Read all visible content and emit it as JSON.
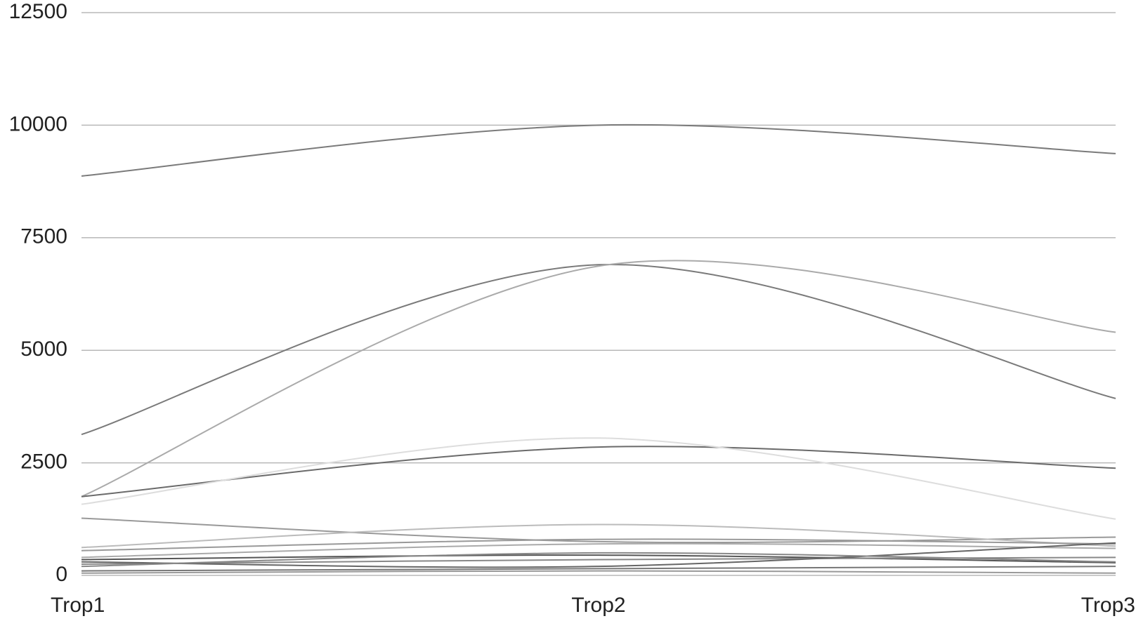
{
  "chart_data": {
    "type": "line",
    "categories": [
      "Trop1",
      "Trop2",
      "Trop3"
    ],
    "ylim": [
      0,
      12500
    ],
    "yticks": [
      0,
      2500,
      5000,
      7500,
      10000,
      12500
    ],
    "grid": true,
    "smooth": true,
    "series": [
      {
        "color": "#7a7a7a",
        "values": [
          8870,
          10000,
          9370
        ]
      },
      {
        "color": "#7a7a7a",
        "values": [
          3130,
          6900,
          3930
        ]
      },
      {
        "color": "#aaaaaa",
        "values": [
          1750,
          6870,
          5400
        ]
      },
      {
        "color": "#6a6a6a",
        "values": [
          1750,
          2850,
          2380
        ]
      },
      {
        "color": "#dddddd",
        "values": [
          1580,
          3050,
          1250
        ]
      },
      {
        "color": "#999999",
        "values": [
          1270,
          750,
          850
        ]
      },
      {
        "color": "#bbbbbb",
        "values": [
          620,
          1130,
          650
        ]
      },
      {
        "color": "#999999",
        "values": [
          550,
          800,
          700
        ]
      },
      {
        "color": "#aaaaaa",
        "values": [
          400,
          700,
          600
        ]
      },
      {
        "color": "#555555",
        "values": [
          350,
          450,
          280
        ]
      },
      {
        "color": "#888888",
        "values": [
          250,
          350,
          400
        ]
      },
      {
        "color": "#666666",
        "values": [
          300,
          200,
          720
        ]
      },
      {
        "color": "#888888",
        "values": [
          200,
          500,
          300
        ]
      },
      {
        "color": "#777777",
        "values": [
          100,
          150,
          200
        ]
      },
      {
        "color": "#999999",
        "values": [
          50,
          100,
          50
        ]
      }
    ]
  }
}
